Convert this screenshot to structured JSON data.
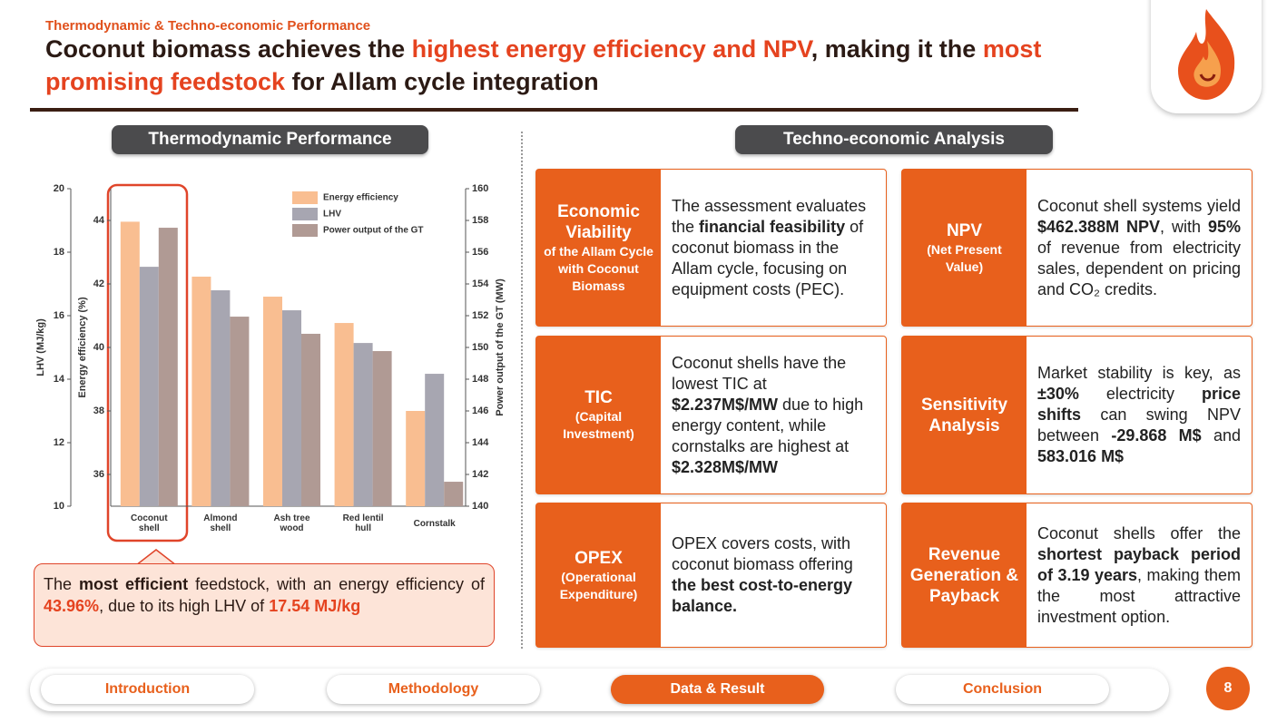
{
  "header": {
    "kicker": "Thermodynamic & Techno-economic Performance",
    "title": [
      {
        "text": "Coconut biomass achieves the "
      },
      {
        "text": "highest energy efficiency and NPV",
        "accent": true
      },
      {
        "text": ", making it the "
      },
      {
        "text": "most promising feedstock",
        "accent": true
      },
      {
        "text": " for Allam cycle integration"
      }
    ]
  },
  "sections": {
    "left": "Thermodynamic Performance",
    "right": "Techno-economic Analysis"
  },
  "chart_data": {
    "type": "bar",
    "categories": [
      "Coconut shell",
      "Almond shell",
      "Ash tree wood",
      "Red lentil hull",
      "Cornstalk"
    ],
    "ylabel": "LHV (MJ/kg)",
    "y2label": "Power output of the GT (MW)",
    "y3label": "Energy efficiency (%)",
    "ylim": [
      10,
      20
    ],
    "yticks": [
      10,
      12,
      14,
      16,
      18,
      20
    ],
    "y2lim": [
      140,
      160
    ],
    "y2ticks": [
      140,
      142,
      144,
      146,
      148,
      150,
      152,
      154,
      156,
      158,
      160
    ],
    "y3lim": [
      35,
      45
    ],
    "y3ticks": [
      36,
      38,
      40,
      42,
      44
    ],
    "series": [
      {
        "name": "Energy efficiency",
        "color": "#f9be91",
        "axis": "y3",
        "values": [
          43.96,
          42.23,
          41.6,
          40.77,
          38.0
        ]
      },
      {
        "name": "LHV",
        "color": "#a7a6b1",
        "axis": "y",
        "values": [
          17.54,
          16.8,
          16.17,
          15.14,
          14.17
        ]
      },
      {
        "name": "Power output of the GT",
        "color": "#b09a94",
        "axis": "y2",
        "values": [
          157.54,
          151.94,
          150.86,
          149.77,
          141.54
        ]
      }
    ]
  },
  "callout": [
    {
      "text": "The "
    },
    {
      "text": "most efficient",
      "bold": true
    },
    {
      "text": " feedstock, with an energy efficiency of "
    },
    {
      "text": "43.96%",
      "accent": true
    },
    {
      "text": ", due to its high LHV of "
    },
    {
      "text": "17.54 MJ/kg",
      "accent": true
    }
  ],
  "cards": [
    {
      "label": "Economic Viability",
      "sublabel": "of the Allam Cycle with Coconut Biomass",
      "text": [
        {
          "text": "The assessment evaluates the "
        },
        {
          "text": "financial feasibility",
          "bold": true
        },
        {
          "text": " of coconut biomass in the Allam cycle, focusing on equipment costs (PEC)."
        }
      ]
    },
    {
      "label": "TIC",
      "sublabel": "(Capital Investment)",
      "text": [
        {
          "text": "Coconut shells have the lowest TIC at "
        },
        {
          "text": "$2.237M$/MW",
          "bold": true
        },
        {
          "text": " due to high energy content, while cornstalks are highest  at "
        },
        {
          "text": "$2.328M$/MW",
          "bold": true
        }
      ]
    },
    {
      "label": "OPEX",
      "sublabel": "(Operational Expenditure)",
      "text": [
        {
          "text": "OPEX covers costs, with coconut biomass offering "
        },
        {
          "text": "the best cost-to-energy balance.",
          "bold": true
        }
      ]
    },
    {
      "label": "NPV",
      "sublabel": "(Net Present Value)",
      "text": [
        {
          "text": "Coconut shell systems yield "
        },
        {
          "text": "$462.388M NPV",
          "bold": true
        },
        {
          "text": ", with "
        },
        {
          "text": "95%",
          "bold": true
        },
        {
          "text": " of revenue from electricity sales, dependent on pricing and CO₂ credits."
        }
      ]
    },
    {
      "label": "Sensitivity Analysis",
      "text": [
        {
          "text": "Market stability is key, as "
        },
        {
          "text": "±30%",
          "bold": true
        },
        {
          "text": " electricity "
        },
        {
          "text": "price shifts",
          "bold": true
        },
        {
          "text": " can swing NPV between "
        },
        {
          "text": "-29.868 M$",
          "bold": true
        },
        {
          "text": " and "
        },
        {
          "text": "583.016 M$",
          "bold": true
        }
      ]
    },
    {
      "label": "Revenue Generation & Payback",
      "text": [
        {
          "text": "Coconut shells offer the "
        },
        {
          "text": "shortest payback period of 3.19 years",
          "bold": true
        },
        {
          "text": ", making them the most attractive investment option."
        }
      ]
    }
  ],
  "nav": {
    "items": [
      {
        "label": "Introduction",
        "active": false
      },
      {
        "label": "Methodology",
        "active": false
      },
      {
        "label": "Data & Result",
        "active": true
      },
      {
        "label": "Conclusion",
        "active": false
      }
    ],
    "page": 8
  }
}
